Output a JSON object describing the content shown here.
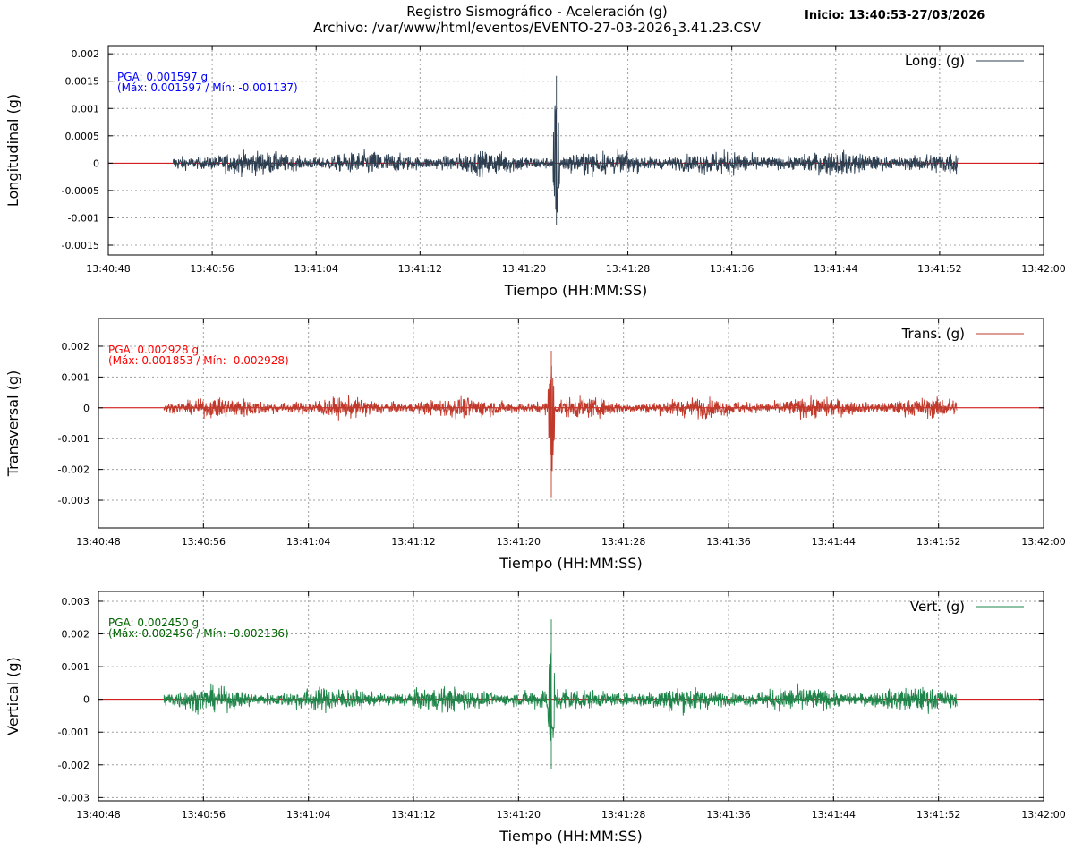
{
  "header": {
    "title_line1": "Registro Sismográfico - Aceleración (g)",
    "title_line2_prefix": "Archivo: /var/www/html/eventos/EVENTO-27-03-2026",
    "title_line2_sub": "1",
    "title_line2_suffix": "3.41.23.CSV",
    "start_info": "Inicio: 13:40:53-27/03/2026"
  },
  "chart_data": [
    {
      "type": "line",
      "series": [
        {
          "name": "Long. (g)",
          "color": "#2c3e50"
        }
      ],
      "ylabel": "Longitudinal (g)",
      "xlabel": "Tiempo (HH:MM:SS)",
      "x_ticks": [
        "13:40:48",
        "13:40:56",
        "13:41:04",
        "13:41:12",
        "13:41:20",
        "13:41:28",
        "13:41:36",
        "13:41:44",
        "13:41:52",
        "13:42:00"
      ],
      "x_range_s": [
        0,
        72
      ],
      "signal_range_s": [
        5,
        65.4
      ],
      "event_s": [
        34.5
      ],
      "y_ticks": [
        0.002,
        0.0015,
        0.001,
        0.0005,
        0,
        -0.0005,
        -0.001,
        -0.0015
      ],
      "y_tick_labels": [
        "0.002",
        "0.0015",
        "0.001",
        "0.0005",
        "0",
        "-0.0005",
        "-0.001",
        "-0.0015"
      ],
      "ylim": [
        -0.00168,
        0.00215
      ],
      "noise_amplitude": 0.00036,
      "pga": 0.001597,
      "max": 0.001597,
      "min": -0.001137,
      "annotation_line1": "PGA: 0.001597 g",
      "annotation_line2": "(Máx: 0.001597 / Mín: -0.001137)",
      "annotation_color": "#0000ff",
      "baseline_color": "#cc0000",
      "grid": true,
      "legend_position": "top-right"
    },
    {
      "type": "line",
      "series": [
        {
          "name": "Trans. (g)",
          "color": "#c0392b"
        }
      ],
      "ylabel": "Transversal (g)",
      "xlabel": "Tiempo (HH:MM:SS)",
      "x_ticks": [
        "13:40:48",
        "13:40:56",
        "13:41:04",
        "13:41:12",
        "13:41:20",
        "13:41:28",
        "13:41:36",
        "13:41:44",
        "13:41:52",
        "13:42:00"
      ],
      "x_range_s": [
        0,
        72
      ],
      "signal_range_s": [
        5,
        65.4
      ],
      "event_s": [
        34.5
      ],
      "y_ticks": [
        0.002,
        0.001,
        0,
        -0.001,
        -0.002,
        -0.003
      ],
      "y_tick_labels": [
        "0.002",
        "0.001",
        "0",
        "-0.001",
        "-0.002",
        "-0.003"
      ],
      "ylim": [
        -0.0039,
        0.0029
      ],
      "noise_amplitude": 0.00055,
      "pga": 0.002928,
      "max": 0.001853,
      "min": -0.002928,
      "annotation_line1": "PGA: 0.002928 g",
      "annotation_line2": "(Máx: 0.001853 / Mín: -0.002928)",
      "annotation_color": "#ff0000",
      "baseline_color": "#cc0000",
      "grid": true,
      "legend_position": "top-right"
    },
    {
      "type": "line",
      "series": [
        {
          "name": "Vert. (g)",
          "color": "#1e8449"
        }
      ],
      "ylabel": "Vertical (g)",
      "xlabel": "Tiempo (HH:MM:SS)",
      "x_ticks": [
        "13:40:48",
        "13:40:56",
        "13:41:04",
        "13:41:12",
        "13:41:20",
        "13:41:28",
        "13:41:36",
        "13:41:44",
        "13:41:52",
        "13:42:00"
      ],
      "x_range_s": [
        0,
        72
      ],
      "signal_range_s": [
        5,
        65.4
      ],
      "event_s": [
        34.5
      ],
      "y_ticks": [
        0.003,
        0.002,
        0.001,
        0,
        -0.001,
        -0.002,
        -0.003
      ],
      "y_tick_labels": [
        "0.003",
        "0.002",
        "0.001",
        "0",
        "-0.001",
        "-0.002",
        "-0.003"
      ],
      "ylim": [
        -0.0031,
        0.0033
      ],
      "noise_amplitude": 0.00062,
      "pga": 0.00245,
      "max": 0.00245,
      "min": -0.002136,
      "annotation_line1": "PGA: 0.002450 g",
      "annotation_line2": "(Máx: 0.002450 / Mín: -0.002136)",
      "annotation_color": "#006400",
      "baseline_color": "#cc0000",
      "grid": true,
      "legend_position": "top-right"
    }
  ]
}
